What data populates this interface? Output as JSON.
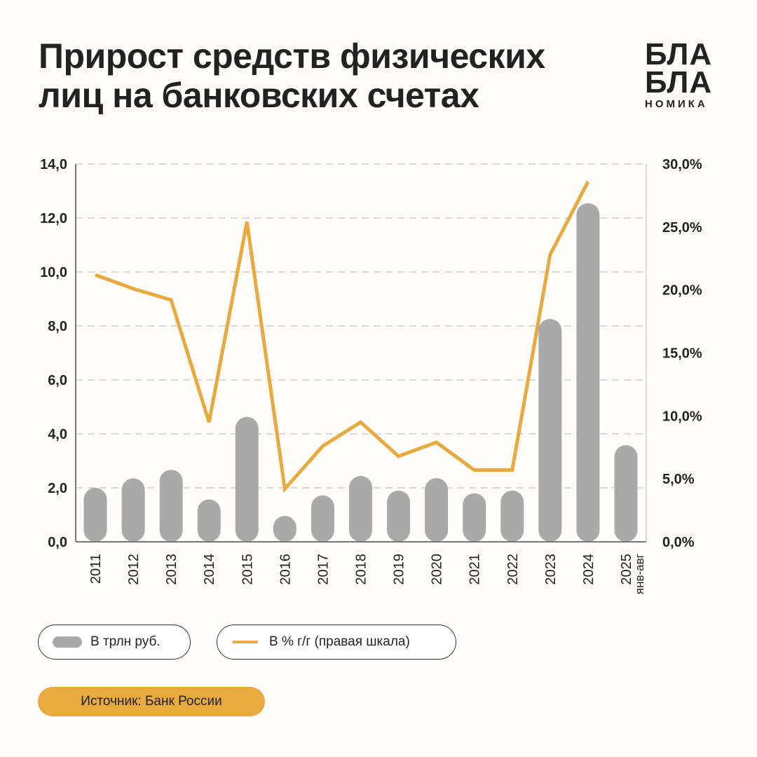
{
  "title": [
    "Прирост средств физических",
    "лиц на банковских счетах"
  ],
  "logo": {
    "line1": "БЛА",
    "line2": "БЛА",
    "line3": "НОМИКА"
  },
  "colors": {
    "bar": "#a9a9a9",
    "line": "#e8a93f",
    "grid": "#cccccc",
    "axis": "#777777"
  },
  "legend": {
    "bars": "В трлн руб.",
    "line": "В % г/г (правая шкала)"
  },
  "source": "Источник: Банк России",
  "chart_data": {
    "type": "bar+line",
    "categories": [
      "2011",
      "2012",
      "2013",
      "2014",
      "2015",
      "2016",
      "2017",
      "2018",
      "2019",
      "2020",
      "2021",
      "2022",
      "2023",
      "2024",
      "2025"
    ],
    "category_sublabels": {
      "2025": "янв-авг"
    },
    "series": [
      {
        "name": "В трлн руб.",
        "type": "bar",
        "axis": "left",
        "values": [
          2.0,
          2.35,
          2.67,
          1.57,
          4.63,
          0.96,
          1.72,
          2.44,
          1.9,
          2.36,
          1.8,
          1.9,
          8.26,
          12.55,
          3.58
        ]
      },
      {
        "name": "В % г/г (правая шкала)",
        "type": "line",
        "axis": "right",
        "values": [
          21.2,
          20.1,
          19.2,
          9.5,
          25.4,
          4.2,
          7.6,
          9.5,
          6.8,
          7.9,
          5.7,
          5.7,
          22.8,
          28.6,
          null
        ]
      }
    ],
    "y_left": {
      "lim": [
        0,
        14
      ],
      "ticks": [
        "0,0",
        "2,0",
        "4,0",
        "6,0",
        "8,0",
        "10,0",
        "12,0",
        "14,0"
      ]
    },
    "y_right": {
      "lim": [
        0,
        30
      ],
      "ticks": [
        "0,0%",
        "5,0%",
        "10,0%",
        "15,0%",
        "20,0%",
        "25,0%",
        "30,0%"
      ]
    },
    "grid": true,
    "legend_position": "bottom"
  }
}
